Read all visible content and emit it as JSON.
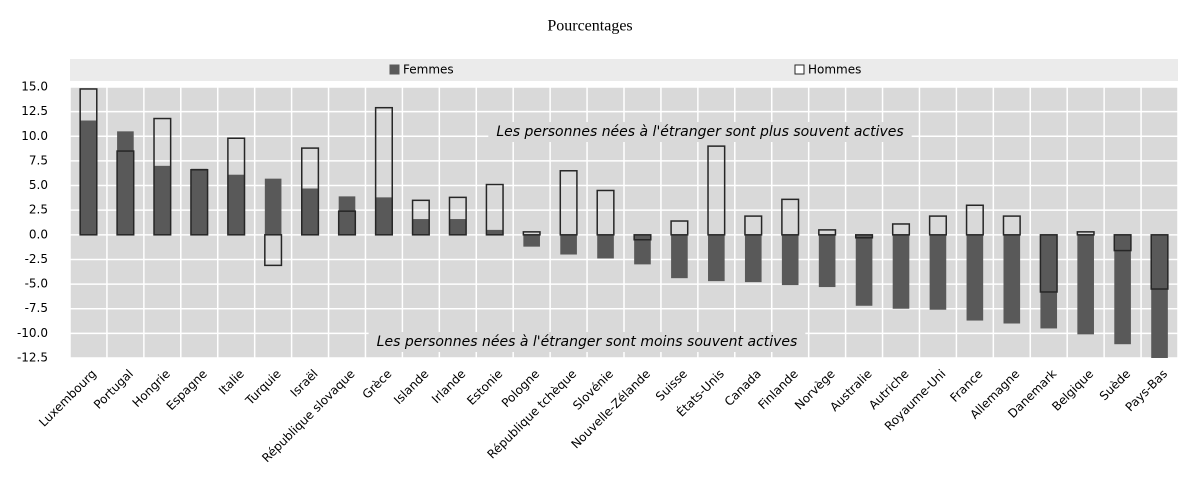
{
  "chart_data": {
    "type": "bar",
    "title": "Pourcentages",
    "categories": [
      "Luxembourg",
      "Portugal",
      "Hongrie",
      "Espagne",
      "Italie",
      "Turquie",
      "Israël",
      "République slovaque",
      "Grèce",
      "Islande",
      "Irlande",
      "Estonie",
      "Pologne",
      "République tchèque",
      "Slovénie",
      "Nouvelle-Zélande",
      "Suisse",
      "États-Unis",
      "Canada",
      "Finlande",
      "Norvège",
      "Australie",
      "Autriche",
      "Royaume-Uni",
      "France",
      "Allemagne",
      "Danemark",
      "Belgique",
      "Suède",
      "Pays-Bas"
    ],
    "series": [
      {
        "name": "Femmes",
        "color": "#595959",
        "values": [
          11.6,
          10.5,
          7.0,
          6.7,
          6.1,
          5.7,
          4.7,
          3.9,
          3.8,
          1.6,
          1.6,
          0.5,
          -1.2,
          -2.0,
          -2.4,
          -3.0,
          -4.4,
          -4.7,
          -4.8,
          -5.1,
          -5.3,
          -7.2,
          -7.5,
          -7.6,
          -8.7,
          -9.0,
          -9.5,
          -10.1,
          -11.1,
          -12.5
        ]
      },
      {
        "name": "Hommes",
        "color": "#262626",
        "values": [
          14.8,
          8.5,
          11.8,
          6.6,
          9.8,
          -3.1,
          8.8,
          2.4,
          12.9,
          3.5,
          3.8,
          5.1,
          0.3,
          6.5,
          4.5,
          -0.5,
          1.4,
          9.0,
          1.9,
          3.6,
          0.5,
          -0.3,
          1.1,
          1.9,
          3.0,
          1.9,
          -5.8,
          0.3,
          -1.6,
          -5.5
        ]
      }
    ],
    "ylim": [
      -12.5,
      15.0
    ],
    "yticks": [
      {
        "value": -12.5,
        "label": "-12.5"
      },
      {
        "value": -10,
        "label": "-10.0"
      },
      {
        "value": -7.5,
        "label": "-7.5"
      },
      {
        "value": -5,
        "label": "-5.0"
      },
      {
        "value": -2.5,
        "label": "-2.5"
      },
      {
        "value": 0,
        "label": "0.0"
      },
      {
        "value": 2.5,
        "label": "2.5"
      },
      {
        "value": 5,
        "label": "5.0"
      },
      {
        "value": 7.5,
        "label": "7.5"
      },
      {
        "value": 10,
        "label": "10.0"
      },
      {
        "value": 12.5,
        "label": "12.5"
      },
      {
        "value": 15,
        "label": "15.0"
      }
    ],
    "grid": true,
    "annotations": [
      "Les personnes nées à l'étranger sont plus souvent actives",
      "Les personnes nées à l'étranger sont moins souvent actives"
    ]
  }
}
